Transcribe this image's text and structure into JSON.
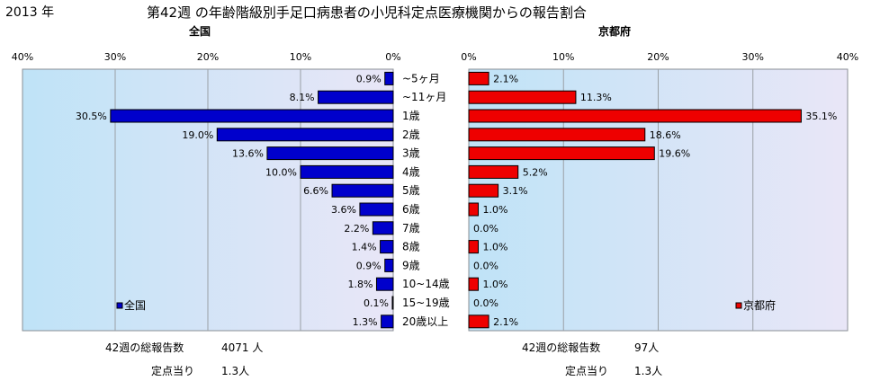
{
  "header": {
    "year": "2013 年",
    "title": "第42週 の年齢階級別手足口病患者の小児科定点医療機関からの報告割合"
  },
  "footer": {
    "left_total_label": "42週の総報告数",
    "left_total_value": "4071 人",
    "left_per_label": "定点当り",
    "left_per_value": "1.3人",
    "right_total_label": "42週の総報告数",
    "right_total_value": "97人",
    "right_per_label": "定点当り",
    "right_per_value": "1.3人"
  },
  "colors": {
    "plot_bg": "#e8eef4",
    "left_bar": "#0000cc",
    "right_bar": "#ee0000",
    "grid": "#9aa0a6"
  },
  "chart_data": [
    {
      "type": "bar",
      "title": "全国",
      "orientation": "horizontal",
      "direction": "right-to-left",
      "xlim": [
        0,
        40
      ],
      "ticks": [
        "0%",
        "10%",
        "20%",
        "30%",
        "40%"
      ],
      "legend": "全国",
      "legend_position": "bottom-left",
      "categories": [
        "~5ヶ月",
        "~11ヶ月",
        "1歳",
        "2歳",
        "3歳",
        "4歳",
        "5歳",
        "6歳",
        "7歳",
        "8歳",
        "9歳",
        "10~14歳",
        "15~19歳",
        "20歳以上"
      ],
      "values": [
        0.9,
        8.1,
        30.5,
        19.0,
        13.6,
        10.0,
        6.6,
        3.6,
        2.2,
        1.4,
        0.9,
        1.8,
        0.1,
        1.3
      ],
      "labels": [
        "0.9%",
        "8.1%",
        "30.5%",
        "19.0%",
        "13.6%",
        "10.0%",
        "6.6%",
        "3.6%",
        "2.2%",
        "1.4%",
        "0.9%",
        "1.8%",
        "0.1%",
        "1.3%"
      ]
    },
    {
      "type": "bar",
      "title": "京都府",
      "orientation": "horizontal",
      "direction": "left-to-right",
      "xlim": [
        0,
        40
      ],
      "ticks": [
        "0%",
        "10%",
        "20%",
        "30%",
        "40%"
      ],
      "legend": "京都府",
      "legend_position": "bottom-right",
      "categories": [
        "~5ヶ月",
        "~11ヶ月",
        "1歳",
        "2歳",
        "3歳",
        "4歳",
        "5歳",
        "6歳",
        "7歳",
        "8歳",
        "9歳",
        "10~14歳",
        "15~19歳",
        "20歳以上"
      ],
      "values": [
        2.1,
        11.3,
        35.1,
        18.6,
        19.6,
        5.2,
        3.1,
        1.0,
        0.0,
        1.0,
        0.0,
        1.0,
        0.0,
        2.1
      ],
      "labels": [
        "2.1%",
        "11.3%",
        "35.1%",
        "18.6%",
        "19.6%",
        "5.2%",
        "3.1%",
        "1.0%",
        "0.0%",
        "1.0%",
        "0.0%",
        "1.0%",
        "0.0%",
        "2.1%"
      ]
    }
  ]
}
